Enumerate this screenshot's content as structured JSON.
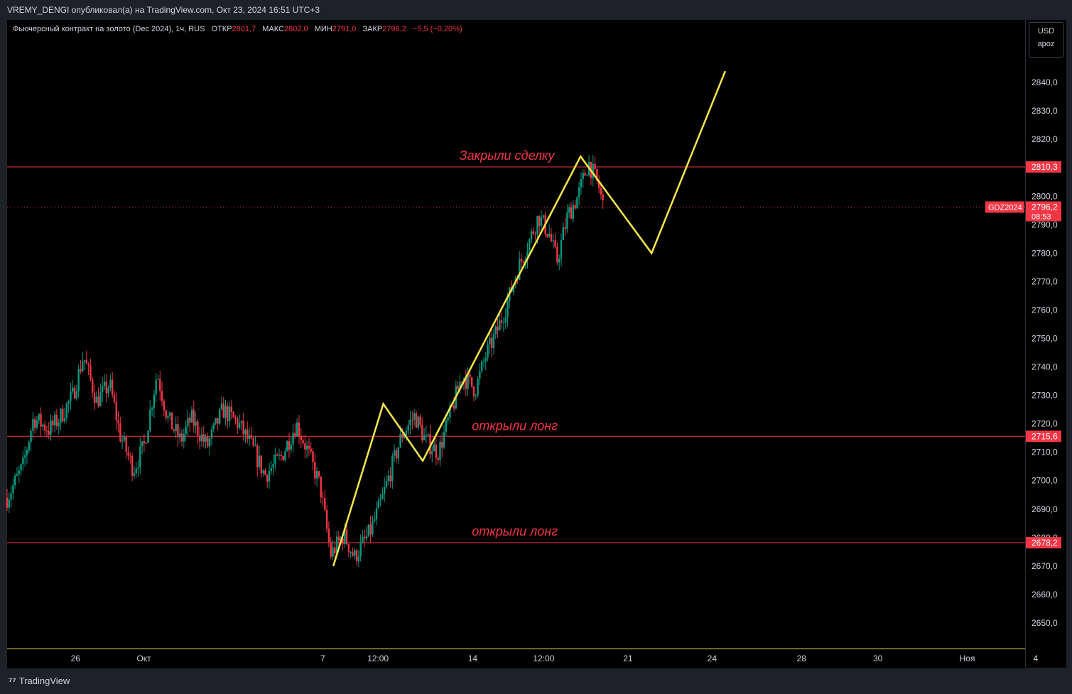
{
  "header": {
    "published": "VREMY_DENGI опубликовал(а) на TradingView.com, Окт 23, 2024 16:51 UTC+3"
  },
  "legend": {
    "title": "Фьючерсный контракт на золото (Dec 2024), 1ч, RUS",
    "open_label": "ОТКР",
    "open_value": "2801,7",
    "high_label": "МАКС",
    "high_value": "2802,0",
    "low_label": "МИН",
    "low_value": "2791,0",
    "close_label": "ЗАКР",
    "close_value": "2796,2",
    "change_value": "−5,5 (−0,20%)"
  },
  "currency_box": {
    "currency": "USD",
    "mode": "apoz"
  },
  "footer": {
    "brand": "TradingView",
    "brand_icon": "tradingview-logo-icon"
  },
  "colors": {
    "background": "#000000",
    "up": "#089981",
    "down": "#f23645",
    "level_line": "#f23645",
    "drawing": "#f6e84a",
    "annotation_text": "#f23645"
  },
  "chart_data": {
    "type": "candlestick",
    "symbol": "GDZ2024",
    "timeframe": "1ч",
    "ylim": [
      2641,
      2862
    ],
    "y_ticks": [
      2650,
      2660,
      2670,
      2680,
      2690,
      2700,
      2710,
      2720,
      2730,
      2740,
      2750,
      2760,
      2770,
      2780,
      2790,
      2800,
      2810,
      2820,
      2830,
      2840
    ],
    "y_tick_labels": [
      "2650,0",
      "2660,0",
      "2670,0",
      "2680,0",
      "2690,0",
      "2700,0",
      "2710,0",
      "2720,0",
      "2730,0",
      "2740,0",
      "2750,0",
      "2760,0",
      "2770,0",
      "2780,0",
      "2790,0",
      "2800,0",
      "2810,0",
      "2820,0",
      "2830,0",
      "2840,0"
    ],
    "x_tick_labels": [
      "26",
      "Окт",
      "7",
      "12:00",
      "14",
      "12:00",
      "21",
      "24",
      "28",
      "30",
      "Ноя",
      "4"
    ],
    "x_ticks": [
      {
        "label": "26",
        "t": 2.6
      },
      {
        "label": "Окт",
        "t": 5.2
      },
      {
        "label": "7",
        "t": 12.0
      },
      {
        "label": "12:00",
        "t": 14.1
      },
      {
        "label": "14",
        "t": 17.7
      },
      {
        "label": "12:00",
        "t": 20.4
      },
      {
        "label": "21",
        "t": 23.6
      },
      {
        "label": "24",
        "t": 26.8
      },
      {
        "label": "28",
        "t": 30.2
      },
      {
        "label": "30",
        "t": 33.1
      },
      {
        "label": "Ноя",
        "t": 36.5
      },
      {
        "label": "4",
        "t": 39.1
      }
    ],
    "x_range": [
      0,
      38.7
    ],
    "price_trajectory": [
      {
        "t": 0.0,
        "p": 2694
      },
      {
        "t": 0.6,
        "p": 2705
      },
      {
        "t": 1.0,
        "p": 2722
      },
      {
        "t": 1.6,
        "p": 2718
      },
      {
        "t": 2.0,
        "p": 2722
      },
      {
        "t": 2.5,
        "p": 2730
      },
      {
        "t": 2.9,
        "p": 2744
      },
      {
        "t": 3.4,
        "p": 2728
      },
      {
        "t": 3.9,
        "p": 2734
      },
      {
        "t": 4.3,
        "p": 2716
      },
      {
        "t": 4.8,
        "p": 2704
      },
      {
        "t": 5.2,
        "p": 2712
      },
      {
        "t": 5.7,
        "p": 2738
      },
      {
        "t": 6.1,
        "p": 2722
      },
      {
        "t": 6.6,
        "p": 2714
      },
      {
        "t": 7.0,
        "p": 2722
      },
      {
        "t": 7.6,
        "p": 2712
      },
      {
        "t": 8.2,
        "p": 2725
      },
      {
        "t": 8.8,
        "p": 2720
      },
      {
        "t": 9.3,
        "p": 2712
      },
      {
        "t": 9.8,
        "p": 2702
      },
      {
        "t": 10.4,
        "p": 2708
      },
      {
        "t": 11.0,
        "p": 2720
      },
      {
        "t": 11.4,
        "p": 2711
      },
      {
        "t": 11.9,
        "p": 2698
      },
      {
        "t": 12.3,
        "p": 2674
      },
      {
        "t": 12.8,
        "p": 2681
      },
      {
        "t": 13.2,
        "p": 2673
      },
      {
        "t": 13.8,
        "p": 2682
      },
      {
        "t": 14.2,
        "p": 2692
      },
      {
        "t": 14.6,
        "p": 2704
      },
      {
        "t": 15.0,
        "p": 2716
      },
      {
        "t": 15.5,
        "p": 2723
      },
      {
        "t": 15.9,
        "p": 2714
      },
      {
        "t": 16.4,
        "p": 2710
      },
      {
        "t": 16.8,
        "p": 2722
      },
      {
        "t": 17.3,
        "p": 2737
      },
      {
        "t": 17.8,
        "p": 2732
      },
      {
        "t": 18.2,
        "p": 2744
      },
      {
        "t": 18.6,
        "p": 2752
      },
      {
        "t": 19.0,
        "p": 2762
      },
      {
        "t": 19.4,
        "p": 2774
      },
      {
        "t": 19.8,
        "p": 2783
      },
      {
        "t": 20.2,
        "p": 2793
      },
      {
        "t": 20.6,
        "p": 2787
      },
      {
        "t": 20.9,
        "p": 2777
      },
      {
        "t": 21.3,
        "p": 2793
      },
      {
        "t": 21.7,
        "p": 2800
      },
      {
        "t": 22.1,
        "p": 2812
      },
      {
        "t": 22.5,
        "p": 2803
      },
      {
        "t": 22.7,
        "p": 2795
      }
    ],
    "horizontal_levels": [
      {
        "price": 2810.3,
        "label": "2810,3"
      },
      {
        "price": 2715.6,
        "label": "2715,6"
      },
      {
        "price": 2678.2,
        "label": "2678,2"
      }
    ],
    "current_price": {
      "price": 2796.2,
      "label": "2796,2",
      "symbol_label": "GDZ2024",
      "countdown": "08:53"
    },
    "wave_drawing": [
      {
        "t": 12.4,
        "p": 2670
      },
      {
        "t": 14.3,
        "p": 2727
      },
      {
        "t": 15.8,
        "p": 2707
      },
      {
        "t": 21.8,
        "p": 2814
      },
      {
        "t": 24.5,
        "p": 2780
      },
      {
        "t": 27.3,
        "p": 2844
      }
    ],
    "annotations": [
      {
        "text": "Закрыли сделку",
        "t": 19.0,
        "p": 2812
      },
      {
        "text": "открыли лонг",
        "t": 19.3,
        "p": 2717
      },
      {
        "text": "открыли лонг",
        "t": 19.3,
        "p": 2680
      }
    ]
  }
}
